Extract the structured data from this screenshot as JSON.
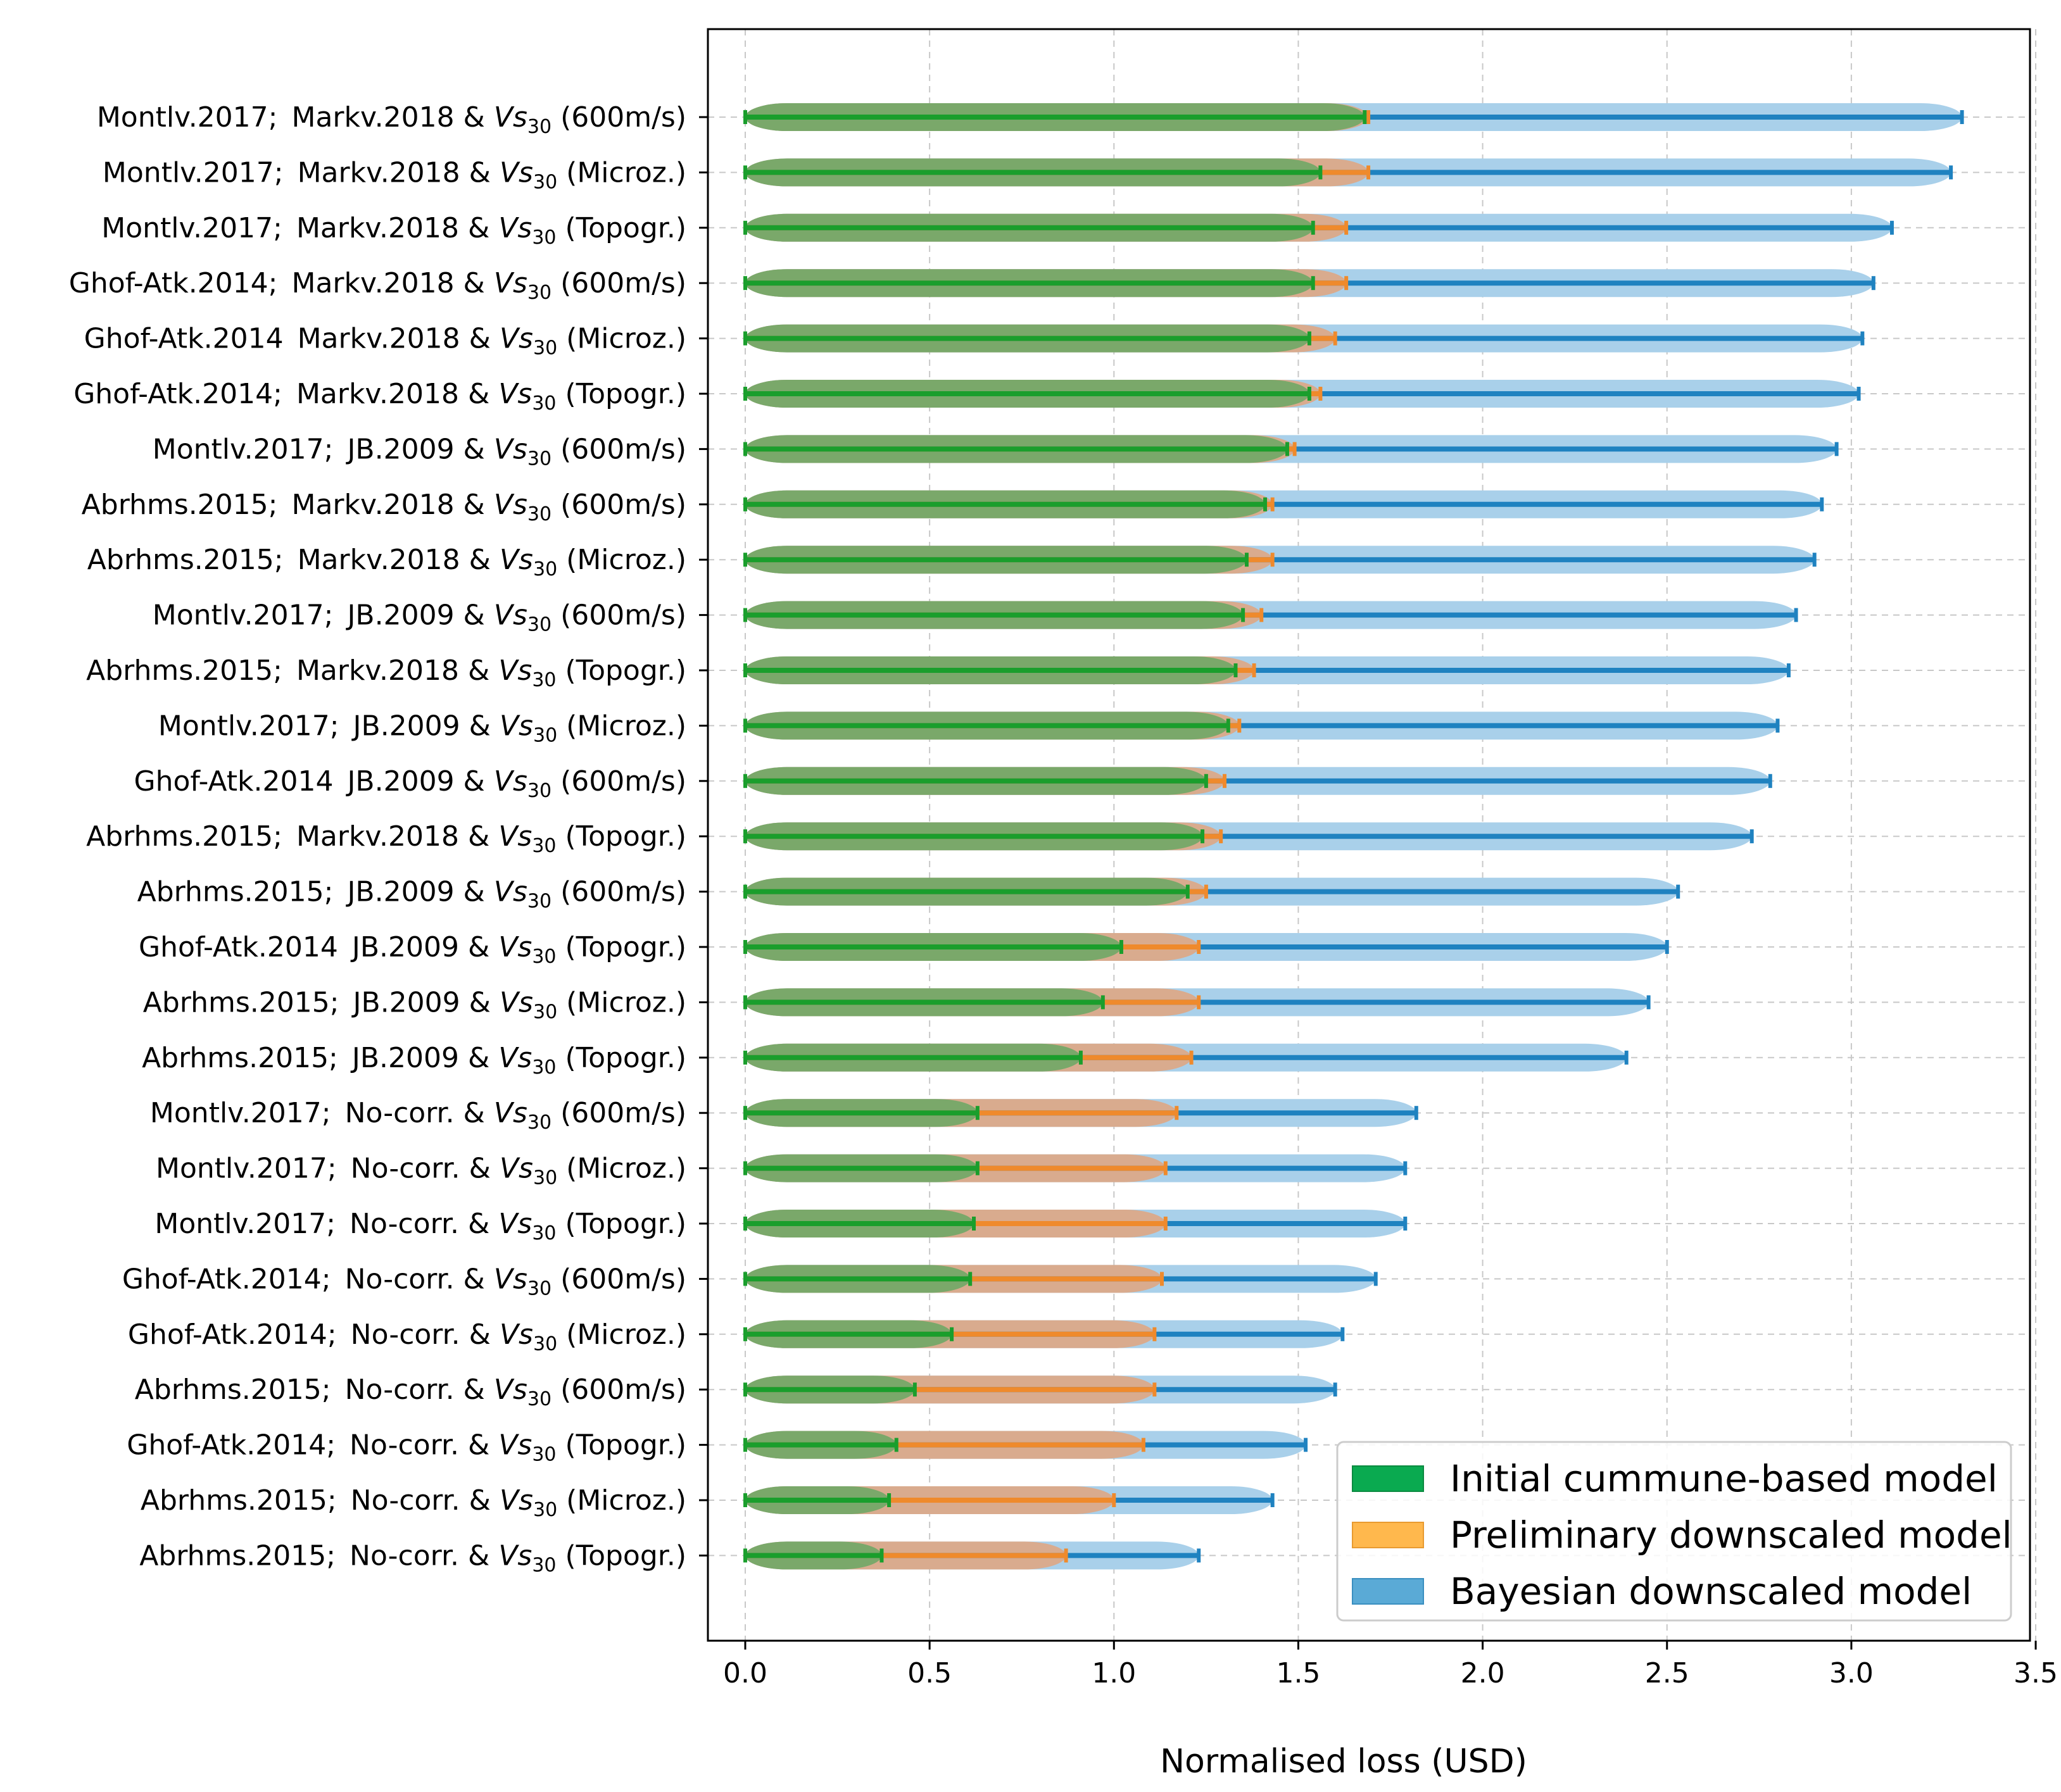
{
  "chart_data": {
    "type": "bar",
    "orientation": "horizontal",
    "xlabel": "Normalised loss (USD)",
    "ylabel": "",
    "xlim": [
      -0.1,
      3.5
    ],
    "xticks": [
      "0.0",
      "0.5",
      "1.0",
      "1.5",
      "2.0",
      "2.5",
      "3.0",
      "3.5"
    ],
    "grid": true,
    "legend_position": "bottom-right",
    "colors": {
      "initial": "#1a9e2c",
      "initial_shade": "#7aa86a",
      "preliminary": "#ef8a2c",
      "preliminary_shade": "#d9ab8e",
      "bayesian": "#1f82c0",
      "bayesian_shade": "#a9d0ea",
      "legend_initial": "#0aaa50",
      "legend_preliminary": "#ffb84d",
      "legend_bayesian": "#5aaad6"
    },
    "series": [
      {
        "name": "Initial cummune-based model",
        "key": "initial"
      },
      {
        "name": "Preliminary downscaled model",
        "key": "preliminary"
      },
      {
        "name": "Bayesian downscaled model",
        "key": "bayesian"
      }
    ],
    "vs_symbol": "Vs",
    "vs_subscript": "30",
    "categories": [
      {
        "model": "Montlv.2017;",
        "corr": "Markv.2018",
        "site": "(600m/s)",
        "initial": 1.68,
        "preliminary": 1.69,
        "bayesian": 3.3
      },
      {
        "model": "Montlv.2017;",
        "corr": "Markv.2018",
        "site": "(Microz.)",
        "initial": 1.56,
        "preliminary": 1.69,
        "bayesian": 3.27
      },
      {
        "model": "Montlv.2017;",
        "corr": "Markv.2018",
        "site": "(Topogr.)",
        "initial": 1.54,
        "preliminary": 1.63,
        "bayesian": 3.11
      },
      {
        "model": "Ghof-Atk.2014;",
        "corr": "Markv.2018",
        "site": "(600m/s)",
        "initial": 1.54,
        "preliminary": 1.63,
        "bayesian": 3.06
      },
      {
        "model": "Ghof-Atk.2014",
        "corr": "Markv.2018",
        "site": "(Microz.)",
        "initial": 1.53,
        "preliminary": 1.6,
        "bayesian": 3.03
      },
      {
        "model": "Ghof-Atk.2014;",
        "corr": "Markv.2018",
        "site": "(Topogr.)",
        "initial": 1.53,
        "preliminary": 1.56,
        "bayesian": 3.02
      },
      {
        "model": "Montlv.2017;",
        "corr": "JB.2009",
        "site": "(600m/s)",
        "initial": 1.47,
        "preliminary": 1.49,
        "bayesian": 2.96
      },
      {
        "model": "Abrhms.2015;",
        "corr": "Markv.2018",
        "site": "(600m/s)",
        "initial": 1.41,
        "preliminary": 1.43,
        "bayesian": 2.92
      },
      {
        "model": "Abrhms.2015;",
        "corr": "Markv.2018",
        "site": "(Microz.)",
        "initial": 1.36,
        "preliminary": 1.43,
        "bayesian": 2.9
      },
      {
        "model": "Montlv.2017;",
        "corr": "JB.2009",
        "site": "(600m/s)",
        "initial": 1.35,
        "preliminary": 1.4,
        "bayesian": 2.85
      },
      {
        "model": "Abrhms.2015;",
        "corr": "Markv.2018",
        "site": "(Topogr.)",
        "initial": 1.33,
        "preliminary": 1.38,
        "bayesian": 2.83
      },
      {
        "model": "Montlv.2017;",
        "corr": "JB.2009",
        "site": "(Microz.)",
        "initial": 1.31,
        "preliminary": 1.34,
        "bayesian": 2.8
      },
      {
        "model": "Ghof-Atk.2014",
        "corr": "JB.2009",
        "site": "(600m/s)",
        "initial": 1.25,
        "preliminary": 1.3,
        "bayesian": 2.78
      },
      {
        "model": "Abrhms.2015;",
        "corr": "Markv.2018",
        "site": "(Topogr.)",
        "initial": 1.24,
        "preliminary": 1.29,
        "bayesian": 2.73
      },
      {
        "model": "Abrhms.2015;",
        "corr": "JB.2009",
        "site": "(600m/s)",
        "initial": 1.2,
        "preliminary": 1.25,
        "bayesian": 2.53
      },
      {
        "model": "Ghof-Atk.2014",
        "corr": "JB.2009",
        "site": "(Topogr.)",
        "initial": 1.02,
        "preliminary": 1.23,
        "bayesian": 2.5
      },
      {
        "model": "Abrhms.2015;",
        "corr": "JB.2009",
        "site": "(Microz.)",
        "initial": 0.97,
        "preliminary": 1.23,
        "bayesian": 2.45
      },
      {
        "model": "Abrhms.2015;",
        "corr": "JB.2009",
        "site": "(Topogr.)",
        "initial": 0.91,
        "preliminary": 1.21,
        "bayesian": 2.39
      },
      {
        "model": "Montlv.2017;",
        "corr": "No-corr.",
        "site": "(600m/s)",
        "initial": 0.63,
        "preliminary": 1.17,
        "bayesian": 1.82
      },
      {
        "model": "Montlv.2017;",
        "corr": "No-corr.",
        "site": "(Microz.)",
        "initial": 0.63,
        "preliminary": 1.14,
        "bayesian": 1.79
      },
      {
        "model": "Montlv.2017;",
        "corr": "No-corr.",
        "site": "(Topogr.)",
        "initial": 0.62,
        "preliminary": 1.14,
        "bayesian": 1.79
      },
      {
        "model": "Ghof-Atk.2014;",
        "corr": "No-corr.",
        "site": "(600m/s)",
        "initial": 0.61,
        "preliminary": 1.13,
        "bayesian": 1.71
      },
      {
        "model": "Ghof-Atk.2014;",
        "corr": "No-corr.",
        "site": "(Microz.)",
        "initial": 0.56,
        "preliminary": 1.11,
        "bayesian": 1.62
      },
      {
        "model": "Abrhms.2015;",
        "corr": "No-corr.",
        "site": "(600m/s)",
        "initial": 0.46,
        "preliminary": 1.11,
        "bayesian": 1.6
      },
      {
        "model": "Ghof-Atk.2014;",
        "corr": "No-corr.",
        "site": "(Topogr.)",
        "initial": 0.41,
        "preliminary": 1.08,
        "bayesian": 1.52
      },
      {
        "model": "Abrhms.2015;",
        "corr": "No-corr.",
        "site": "(Microz.)",
        "initial": 0.39,
        "preliminary": 1.0,
        "bayesian": 1.43
      },
      {
        "model": "Abrhms.2015;",
        "corr": "No-corr.",
        "site": "(Topogr.)",
        "initial": 0.37,
        "preliminary": 0.87,
        "bayesian": 1.23
      }
    ]
  }
}
